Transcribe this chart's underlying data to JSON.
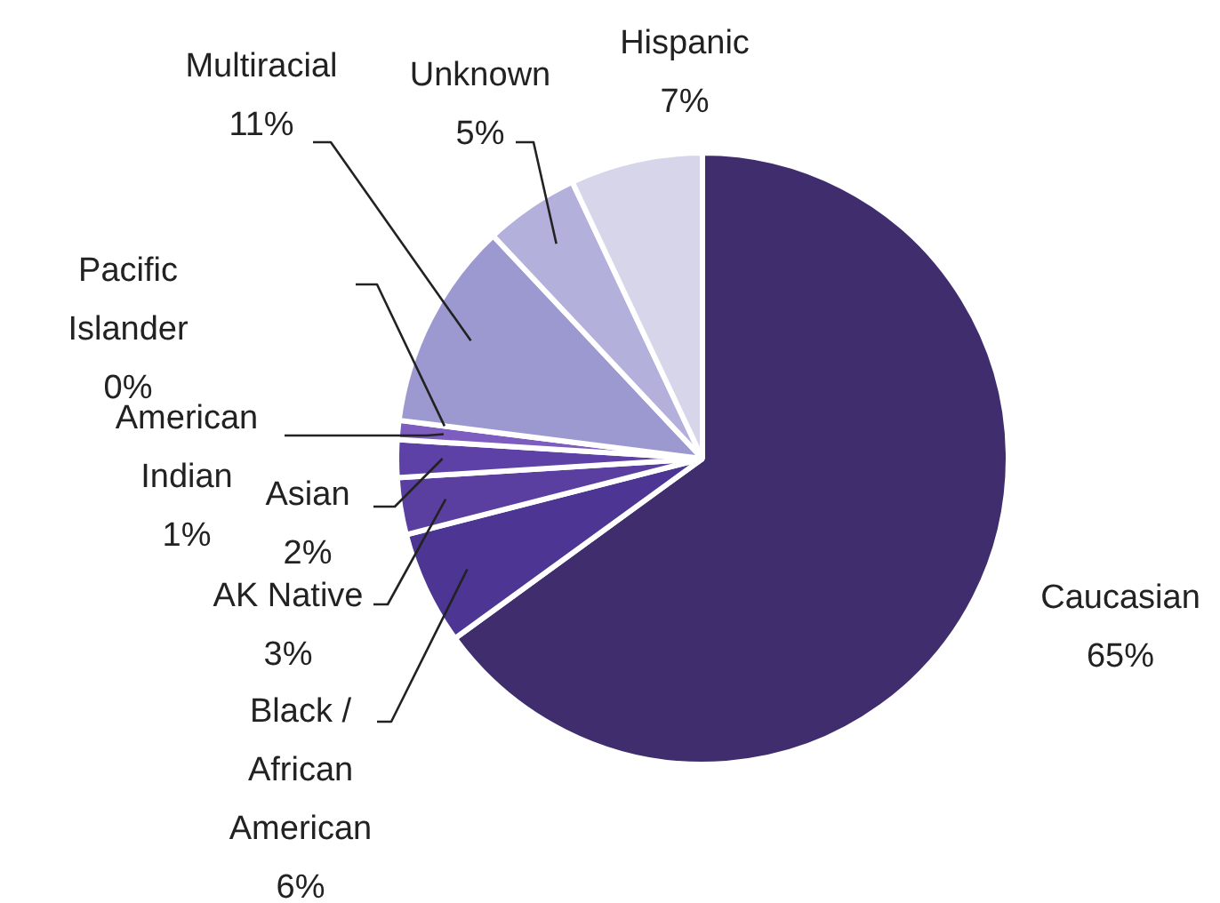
{
  "chart_data": {
    "type": "pie",
    "categories": [
      "Caucasian",
      "Black / African American",
      "AK Native",
      "Asian",
      "American Indian",
      "Pacific Islander",
      "Multiracial",
      "Unknown",
      "Hispanic"
    ],
    "values": [
      65,
      6,
      3,
      2,
      1,
      0,
      11,
      5,
      7
    ],
    "colors": [
      "#3f2d6e",
      "#4c3593",
      "#5a3fa0",
      "#5e41a6",
      "#7d5dbf",
      "#b38ce0",
      "#9c98d0",
      "#b3b0dc",
      "#d6d5ea"
    ],
    "value_labels": [
      "65%",
      "6%",
      "3%",
      "2%",
      "1%",
      "0%",
      "11%",
      "5%",
      "7%"
    ]
  }
}
